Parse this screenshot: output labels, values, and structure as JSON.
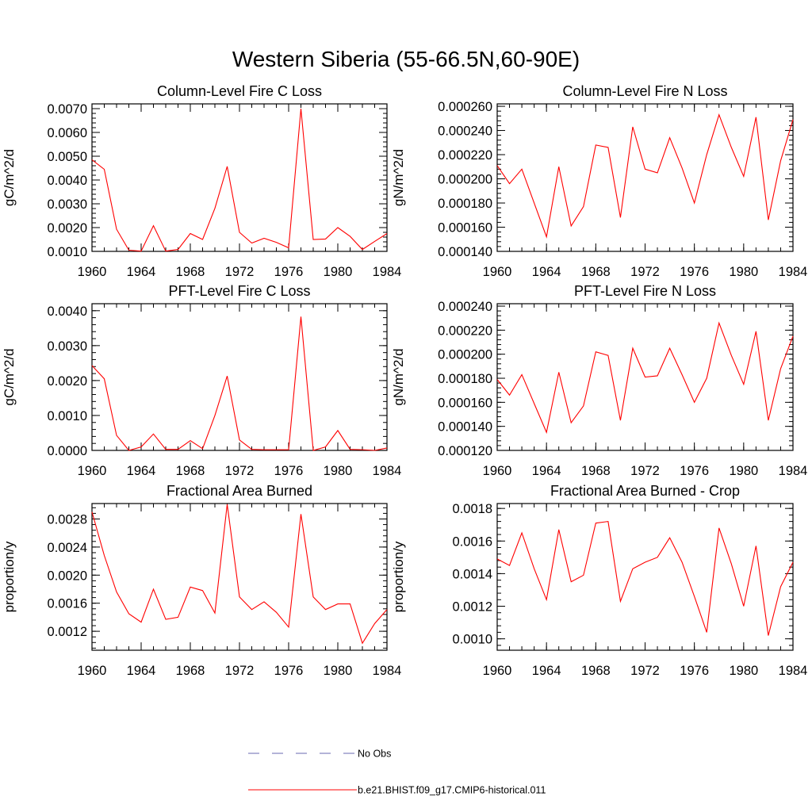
{
  "figure": {
    "title": "Western Siberia (55-66.5N,60-90E)",
    "line_color": "#ff0000",
    "obs_color": "#6a6ab0"
  },
  "legend": {
    "obs_label": "No Obs",
    "model_label": "b.e21.BHIST.f09_g17.CMIP6-historical.011"
  },
  "chart_data": [
    {
      "type": "line",
      "title": "Column-Level Fire C Loss",
      "ylabel": "gC/m^2/d",
      "xlabel": "",
      "xlim": [
        1960,
        1984
      ],
      "ylim": [
        0.001,
        0.0072
      ],
      "xticks": [
        1960,
        1964,
        1968,
        1972,
        1976,
        1980,
        1984
      ],
      "yticks": [
        0.001,
        0.002,
        0.003,
        0.004,
        0.005,
        0.006,
        0.007
      ],
      "ytick_labels": [
        "0.0010",
        "0.0020",
        "0.0030",
        "0.0040",
        "0.0050",
        "0.0060",
        "0.0070"
      ],
      "series": [
        {
          "x": [
            1960,
            1961,
            1962,
            1963,
            1964,
            1965,
            1966,
            1967,
            1968,
            1969,
            1970,
            1971,
            1972,
            1973,
            1974,
            1975,
            1976,
            1977,
            1978,
            1979,
            1980,
            1981,
            1982,
            1983,
            1984
          ],
          "values": [
            0.00485,
            0.00445,
            0.00193,
            0.00105,
            0.00101,
            0.00208,
            0.00101,
            0.00108,
            0.00175,
            0.0015,
            0.00281,
            0.00457,
            0.0018,
            0.00135,
            0.00155,
            0.00138,
            0.00115,
            0.007,
            0.0015,
            0.00152,
            0.002,
            0.00163,
            0.00108,
            0.00142,
            0.00175
          ]
        }
      ]
    },
    {
      "type": "line",
      "title": "Column-Level Fire N Loss",
      "ylabel": "gN/m^2/d",
      "xlabel": "",
      "xlim": [
        1960,
        1984
      ],
      "ylim": [
        0.00014,
        0.000262
      ],
      "xticks": [
        1960,
        1964,
        1968,
        1972,
        1976,
        1980,
        1984
      ],
      "yticks": [
        0.00014,
        0.00016,
        0.00018,
        0.0002,
        0.00022,
        0.00024,
        0.00026
      ],
      "ytick_labels": [
        "0.000140",
        "0.000160",
        "0.000180",
        "0.000200",
        "0.000220",
        "0.000240",
        "0.000260"
      ],
      "series": [
        {
          "x": [
            1960,
            1961,
            1962,
            1963,
            1964,
            1965,
            1966,
            1967,
            1968,
            1969,
            1970,
            1971,
            1972,
            1973,
            1974,
            1975,
            1976,
            1977,
            1978,
            1979,
            1980,
            1981,
            1982,
            1983,
            1984
          ],
          "values": [
            0.000211,
            0.000196,
            0.000208,
            0.00018,
            0.000152,
            0.00021,
            0.000161,
            0.000177,
            0.000228,
            0.000226,
            0.000168,
            0.000243,
            0.000208,
            0.000205,
            0.000234,
            0.000209,
            0.00018,
            0.00022,
            0.000253,
            0.000226,
            0.000202,
            0.000251,
            0.000166,
            0.000215,
            0.000249
          ]
        }
      ]
    },
    {
      "type": "line",
      "title": "PFT-Level Fire C Loss",
      "ylabel": "gC/m^2/d",
      "xlabel": "",
      "xlim": [
        1960,
        1984
      ],
      "ylim": [
        0.0,
        0.0042
      ],
      "xticks": [
        1960,
        1964,
        1968,
        1972,
        1976,
        1980,
        1984
      ],
      "yticks": [
        0.0,
        0.001,
        0.002,
        0.003,
        0.004
      ],
      "ytick_labels": [
        "0.0000",
        "0.0010",
        "0.0020",
        "0.0030",
        "0.0040"
      ],
      "series": [
        {
          "x": [
            1960,
            1961,
            1962,
            1963,
            1964,
            1965,
            1966,
            1967,
            1968,
            1969,
            1970,
            1971,
            1972,
            1973,
            1974,
            1975,
            1976,
            1977,
            1978,
            1979,
            1980,
            1981,
            1982,
            1983,
            1984
          ],
          "values": [
            0.00243,
            0.00205,
            0.00043,
            0.0,
            0.0001,
            0.00047,
            3e-05,
            3e-05,
            0.00028,
            5e-05,
            0.001,
            0.00213,
            0.0003,
            3e-05,
            2e-05,
            2e-05,
            2e-05,
            0.00383,
            0.0,
            0.0001,
            0.00057,
            3e-05,
            2e-05,
            0.0,
            7e-05
          ]
        }
      ]
    },
    {
      "type": "line",
      "title": "PFT-Level Fire N Loss",
      "ylabel": "gN/m^2/d",
      "xlabel": "",
      "xlim": [
        1960,
        1984
      ],
      "ylim": [
        0.00012,
        0.000242
      ],
      "xticks": [
        1960,
        1964,
        1968,
        1972,
        1976,
        1980,
        1984
      ],
      "yticks": [
        0.00012,
        0.00014,
        0.00016,
        0.00018,
        0.0002,
        0.00022,
        0.00024
      ],
      "ytick_labels": [
        "0.000120",
        "0.000140",
        "0.000160",
        "0.000180",
        "0.000200",
        "0.000220",
        "0.000240"
      ],
      "series": [
        {
          "x": [
            1960,
            1961,
            1962,
            1963,
            1964,
            1965,
            1966,
            1967,
            1968,
            1969,
            1970,
            1971,
            1972,
            1973,
            1974,
            1975,
            1976,
            1977,
            1978,
            1979,
            1980,
            1981,
            1982,
            1983,
            1984
          ],
          "values": [
            0.000179,
            0.000166,
            0.000183,
            0.000159,
            0.000135,
            0.000185,
            0.000143,
            0.000157,
            0.000202,
            0.000199,
            0.000145,
            0.000205,
            0.000181,
            0.000182,
            0.000205,
            0.000183,
            0.00016,
            0.00018,
            0.000226,
            0.000199,
            0.000175,
            0.000219,
            0.000145,
            0.000188,
            0.000215
          ]
        }
      ]
    },
    {
      "type": "line",
      "title": "Fractional Area Burned",
      "ylabel": "proportion/y",
      "xlabel": "",
      "xlim": [
        1960,
        1984
      ],
      "ylim": [
        0.00093,
        0.00302
      ],
      "xticks": [
        1960,
        1964,
        1968,
        1972,
        1976,
        1980,
        1984
      ],
      "yticks": [
        0.0012,
        0.0016,
        0.002,
        0.0024,
        0.0028
      ],
      "ytick_labels": [
        "0.0012",
        "0.0016",
        "0.0020",
        "0.0024",
        "0.0028"
      ],
      "series": [
        {
          "x": [
            1960,
            1961,
            1962,
            1963,
            1964,
            1965,
            1966,
            1967,
            1968,
            1969,
            1970,
            1971,
            1972,
            1973,
            1974,
            1975,
            1976,
            1977,
            1978,
            1979,
            1980,
            1981,
            1982,
            1983,
            1984
          ],
          "values": [
            0.0029,
            0.00228,
            0.00176,
            0.00145,
            0.00133,
            0.0018,
            0.00137,
            0.0014,
            0.00183,
            0.00178,
            0.00146,
            0.00301,
            0.00169,
            0.00151,
            0.00162,
            0.00147,
            0.00126,
            0.00287,
            0.00169,
            0.00151,
            0.00159,
            0.00159,
            0.00103,
            0.00131,
            0.00151
          ]
        }
      ]
    },
    {
      "type": "line",
      "title": "Fractional Area Burned - Crop",
      "ylabel": "proportion/y",
      "xlabel": "",
      "xlim": [
        1960,
        1984
      ],
      "ylim": [
        0.00093,
        0.00183
      ],
      "xticks": [
        1960,
        1964,
        1968,
        1972,
        1976,
        1980,
        1984
      ],
      "yticks": [
        0.001,
        0.0012,
        0.0014,
        0.0016,
        0.0018
      ],
      "ytick_labels": [
        "0.0010",
        "0.0012",
        "0.0014",
        "0.0016",
        "0.0018"
      ],
      "series": [
        {
          "x": [
            1960,
            1961,
            1962,
            1963,
            1964,
            1965,
            1966,
            1967,
            1968,
            1969,
            1970,
            1971,
            1972,
            1973,
            1974,
            1975,
            1976,
            1977,
            1978,
            1979,
            1980,
            1981,
            1982,
            1983,
            1984
          ],
          "values": [
            0.00149,
            0.00145,
            0.00165,
            0.00143,
            0.00124,
            0.00167,
            0.00135,
            0.00139,
            0.00171,
            0.00172,
            0.00123,
            0.00143,
            0.00147,
            0.0015,
            0.00162,
            0.00147,
            0.00126,
            0.00104,
            0.00168,
            0.00146,
            0.0012,
            0.00157,
            0.00102,
            0.00132,
            0.00147
          ]
        }
      ]
    }
  ]
}
